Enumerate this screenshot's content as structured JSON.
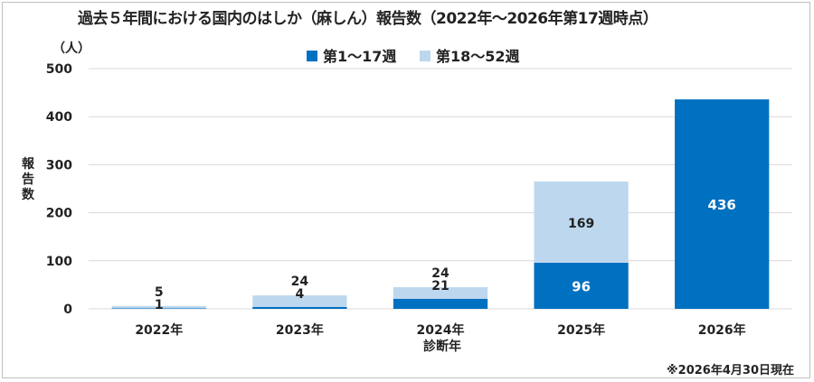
{
  "title": "過去５年間における国内のはしか（麻しん）報告数（2022年〜2026年第17週時点）",
  "note": "※2026年4月30日現在",
  "colors": {
    "series1": "#0070c0",
    "series2": "#bdd7ee",
    "grid": "#d9d9d9"
  },
  "chart_data": {
    "type": "bar",
    "stacked": true,
    "title": "過去５年間における国内のはしか（麻しん）報告数（2022年〜2026年第17週時点）",
    "xlabel": "診断年",
    "ylabel": "報告数",
    "yunit": "（人）",
    "ylim": [
      0,
      500
    ],
    "yticks": [
      0,
      100,
      200,
      300,
      400,
      500
    ],
    "grid": true,
    "legend": "top-center",
    "categories": [
      "2022年",
      "2023年",
      "2024年",
      "2025年",
      "2026年"
    ],
    "series": [
      {
        "name": "第1〜17週",
        "values": [
          1,
          4,
          21,
          96,
          436
        ],
        "labels": [
          "1",
          "4",
          "21",
          "96",
          "436"
        ]
      },
      {
        "name": "第18〜52週",
        "values": [
          5,
          24,
          24,
          169,
          null
        ],
        "labels": [
          "5",
          "24",
          "24",
          "169",
          ""
        ]
      }
    ]
  }
}
